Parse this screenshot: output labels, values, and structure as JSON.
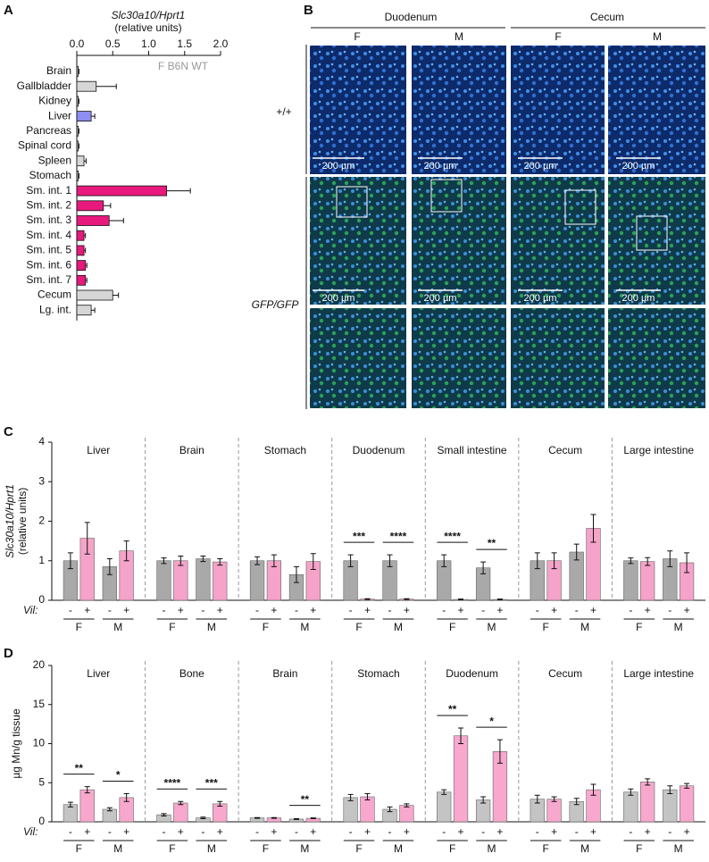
{
  "chart_data": [
    {
      "panel": "A",
      "type": "hbar",
      "title": "Slc30a10/Hprt1",
      "subtitle": "(relative units)",
      "annotation": "F B6N WT",
      "categories": [
        "Brain",
        "Gallbladder",
        "Kidney",
        "Liver",
        "Pancreas",
        "Spinal cord",
        "Spleen",
        "Stomach",
        "Sm. int. 1",
        "Sm. int. 2",
        "Sm. int. 3",
        "Sm. int. 4",
        "Sm. int. 5",
        "Sm. int. 6",
        "Sm. int. 7",
        "Cecum",
        "Lg. int."
      ],
      "values": [
        0.02,
        0.27,
        0.02,
        0.2,
        0.02,
        0.02,
        0.1,
        0.02,
        1.25,
        0.37,
        0.45,
        0.1,
        0.1,
        0.12,
        0.12,
        0.5,
        0.2
      ],
      "errors": [
        0.01,
        0.28,
        0.01,
        0.05,
        0.01,
        0.01,
        0.03,
        0.01,
        0.33,
        0.1,
        0.2,
        0.02,
        0.02,
        0.02,
        0.02,
        0.08,
        0.05
      ],
      "colors": [
        "#d6d6d6",
        "#d6d6d6",
        "#d6d6d6",
        "#8e8ef0",
        "#d6d6d6",
        "#d6d6d6",
        "#d6d6d6",
        "#d6d6d6",
        "#e8197c",
        "#e8197c",
        "#e8197c",
        "#e8197c",
        "#e8197c",
        "#e8197c",
        "#e8197c",
        "#d6d6d6",
        "#d6d6d6"
      ],
      "xlim": [
        0,
        2
      ],
      "xticks": [
        {
          "value": 0,
          "label": "0.0"
        },
        0.5,
        {
          "value": 1,
          "label": "1.0"
        },
        1.5,
        {
          "value": 2,
          "label": "2.0"
        }
      ]
    },
    {
      "panel": "C",
      "type": "grouped_bar",
      "ylabel": "Slc30a10/Hprt1",
      "ylabel2": "(relative units)",
      "categories": [
        "Liver",
        "Brain",
        "Stomach",
        "Duodenum",
        "Small intestine",
        "Cecum",
        "Large intestine"
      ],
      "group_label": "Vil:",
      "subgroups": [
        "F",
        "M"
      ],
      "genotypes": [
        "-",
        "+"
      ],
      "series": [
        {
          "color": "#a9a9a9",
          "values": [
            1.0,
            1.0,
            1.0,
            1.0,
            1.0,
            1.0,
            1.0
          ],
          "errors": [
            0.2,
            0.07,
            0.1,
            0.15,
            0.15,
            0.2,
            0.07
          ]
        },
        {
          "color": "#f5a3c8",
          "values": [
            1.57,
            1.0,
            1.0,
            0.03,
            0.02,
            1.0,
            0.98
          ],
          "errors": [
            0.4,
            0.12,
            0.15,
            0.01,
            0.01,
            0.2,
            0.1
          ]
        },
        {
          "color": "#a9a9a9",
          "values": [
            0.85,
            1.05,
            0.65,
            1.0,
            0.82,
            1.22,
            1.05
          ],
          "errors": [
            0.2,
            0.07,
            0.2,
            0.15,
            0.15,
            0.2,
            0.2
          ]
        },
        {
          "color": "#f5a3c8",
          "values": [
            1.25,
            0.97,
            0.98,
            0.03,
            0.02,
            1.82,
            0.95
          ],
          "errors": [
            0.25,
            0.08,
            0.2,
            0.01,
            0.01,
            0.35,
            0.25
          ]
        }
      ],
      "significance": [
        [
          null,
          null,
          null,
          "***",
          "****",
          null,
          null
        ],
        [
          null,
          null,
          null,
          "****",
          "**",
          null,
          null
        ]
      ],
      "ylim": [
        0,
        4
      ],
      "yticks": [
        0,
        1,
        2,
        3,
        4
      ]
    },
    {
      "panel": "D",
      "type": "grouped_bar",
      "ylabel": "µg Mn/g tissue",
      "categories": [
        "Liver",
        "Bone",
        "Brain",
        "Stomach",
        "Duodenum",
        "Cecum",
        "Large intestine"
      ],
      "group_label": "Vil:",
      "subgroups": [
        "F",
        "M"
      ],
      "genotypes": [
        "-",
        "+"
      ],
      "series": [
        {
          "color": "#c4c4c4",
          "values": [
            2.2,
            0.9,
            0.5,
            3.1,
            3.8,
            2.9,
            3.8
          ],
          "errors": [
            0.3,
            0.15,
            0.05,
            0.4,
            0.3,
            0.5,
            0.4
          ]
        },
        {
          "color": "#f7a8cc",
          "values": [
            4.1,
            2.4,
            0.5,
            3.2,
            11.0,
            2.9,
            5.1
          ],
          "errors": [
            0.4,
            0.2,
            0.05,
            0.4,
            1.0,
            0.3,
            0.4
          ]
        },
        {
          "color": "#c4c4c4",
          "values": [
            1.6,
            0.5,
            0.35,
            1.6,
            2.8,
            2.6,
            4.1
          ],
          "errors": [
            0.2,
            0.1,
            0.05,
            0.3,
            0.4,
            0.4,
            0.5
          ]
        },
        {
          "color": "#f7a8cc",
          "values": [
            3.1,
            2.3,
            0.45,
            2.1,
            9.0,
            4.1,
            4.6
          ],
          "errors": [
            0.5,
            0.3,
            0.05,
            0.2,
            1.5,
            0.7,
            0.3
          ]
        }
      ],
      "significance": [
        [
          "**",
          "****",
          null,
          null,
          "**",
          null,
          null
        ],
        [
          "*",
          "***",
          "**",
          null,
          "*",
          null,
          null
        ]
      ],
      "ylim": [
        0,
        20
      ],
      "yticks": [
        0,
        5,
        10,
        15,
        20
      ]
    }
  ],
  "panel_b": {
    "label": "B",
    "regions": [
      "Duodenum",
      "Cecum"
    ],
    "columns": [
      "F",
      "M",
      "F",
      "M"
    ],
    "rows": [
      "+/+",
      "GFP/GFP"
    ],
    "scale_bar": "200 µm"
  }
}
